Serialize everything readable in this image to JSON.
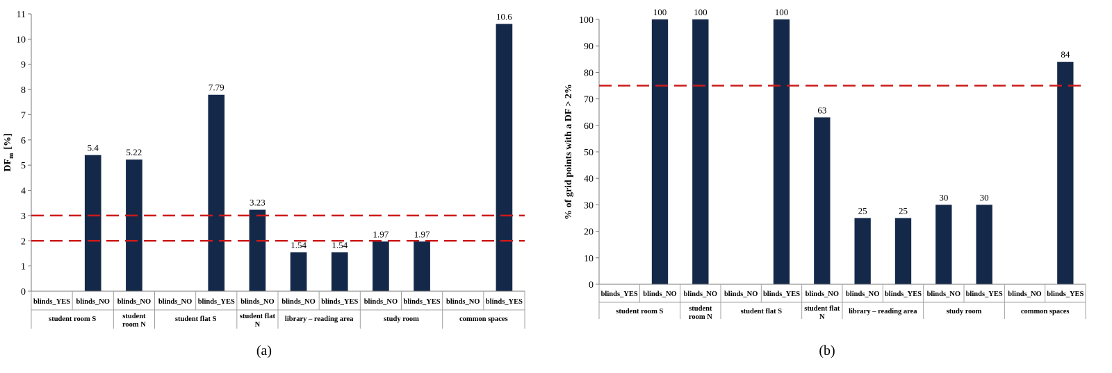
{
  "chart_data": [
    {
      "type": "bar",
      "panel_label": "(a)",
      "ylabel_main": "DF",
      "ylabel_sub": "m",
      "ylabel_unit": "[%]",
      "ylim": [
        0,
        11
      ],
      "yticks": [
        "0",
        "1",
        "2",
        "3",
        "4",
        "5",
        "6",
        "7",
        "8",
        "9",
        "10",
        "11"
      ],
      "bar_color": "#14294a",
      "reference_lines": [
        3,
        2
      ],
      "reference_line_color": "#cc1a1a",
      "categories": [
        "blinds_YES",
        "blinds_NO",
        "blinds_NO",
        "blinds_NO",
        "blinds_YES",
        "blinds_NO",
        "blinds_NO",
        "blinds_YES",
        "blinds_NO",
        "blinds_YES",
        "blinds_NO",
        "blinds_YES"
      ],
      "values": [
        null,
        5.4,
        5.22,
        null,
        7.79,
        3.23,
        1.54,
        1.54,
        1.97,
        1.97,
        null,
        10.6
      ],
      "value_labels": [
        "",
        "5.4",
        "5.22",
        "",
        "7.79",
        "3.23",
        "1.54",
        "1.54",
        "1.97",
        "1.97",
        "",
        "10.6"
      ],
      "groups": [
        {
          "lines": [
            "student room S"
          ],
          "span": 2
        },
        {
          "lines": [
            "student",
            "room N"
          ],
          "span": 1
        },
        {
          "lines": [
            "student flat S"
          ],
          "span": 2
        },
        {
          "lines": [
            "student flat",
            "N"
          ],
          "span": 1
        },
        {
          "lines": [
            "library – reading area"
          ],
          "span": 2
        },
        {
          "lines": [
            "study room"
          ],
          "span": 2
        },
        {
          "lines": [
            "common spaces"
          ],
          "span": 2
        }
      ]
    },
    {
      "type": "bar",
      "panel_label": "(b)",
      "ylabel": "% of grid points with a DF > 2%",
      "ylim": [
        0,
        100
      ],
      "yticks": [
        "0",
        "10",
        "20",
        "30",
        "40",
        "50",
        "60",
        "70",
        "80",
        "90",
        "100"
      ],
      "bar_color": "#14294a",
      "reference_lines": [
        75
      ],
      "reference_line_color": "#cc1a1a",
      "categories": [
        "blinds_YES",
        "blinds_NO",
        "blinds_NO",
        "blinds_NO",
        "blinds_YES",
        "blinds_NO",
        "blinds_NO",
        "blinds_YES",
        "blinds_NO",
        "blinds_YES",
        "blinds_NO",
        "blinds_YES"
      ],
      "values": [
        null,
        100,
        100,
        null,
        100,
        63,
        25,
        25,
        30,
        30,
        null,
        84
      ],
      "value_labels": [
        "",
        "100",
        "100",
        "",
        "100",
        "63",
        "25",
        "25",
        "30",
        "30",
        "",
        "84"
      ],
      "groups": [
        {
          "lines": [
            "student room S"
          ],
          "span": 2
        },
        {
          "lines": [
            "student",
            "room N"
          ],
          "span": 1
        },
        {
          "lines": [
            "student flat S"
          ],
          "span": 2
        },
        {
          "lines": [
            "student flat",
            "N"
          ],
          "span": 1
        },
        {
          "lines": [
            "library – reading area"
          ],
          "span": 2
        },
        {
          "lines": [
            "study room"
          ],
          "span": 2
        },
        {
          "lines": [
            "common spaces"
          ],
          "span": 2
        }
      ]
    }
  ]
}
